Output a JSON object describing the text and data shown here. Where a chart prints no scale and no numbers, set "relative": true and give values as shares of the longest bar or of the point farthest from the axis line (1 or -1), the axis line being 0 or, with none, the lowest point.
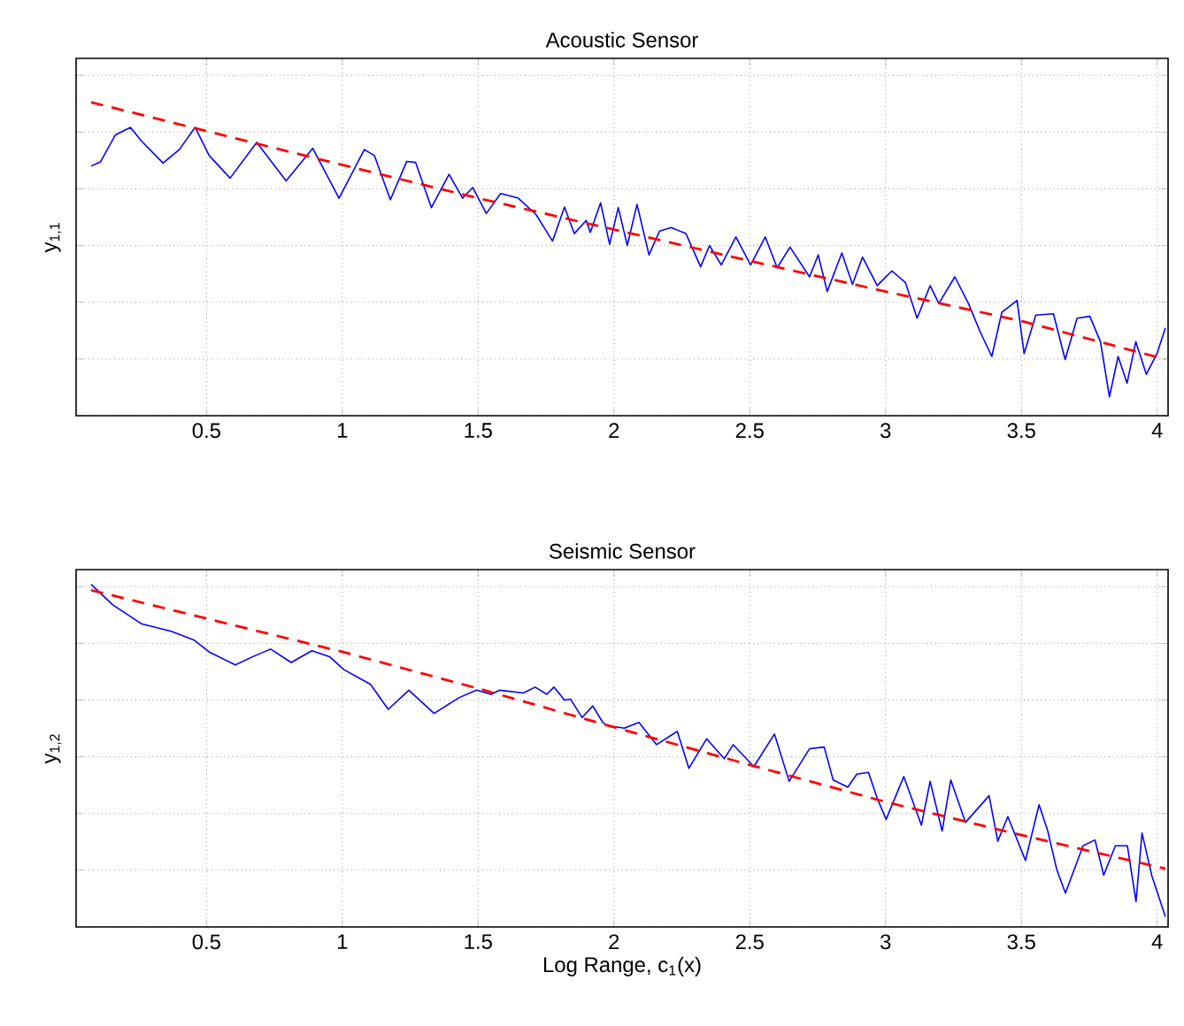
{
  "chart_data": [
    {
      "type": "line",
      "title": "Acoustic Sensor",
      "ylabel": "y$_{1,1}$",
      "relative": true,
      "grid": true,
      "xlim": [
        0.02,
        4.04
      ],
      "xticks": [
        0.5,
        1,
        1.5,
        2,
        2.5,
        3,
        3.5,
        4
      ],
      "series": [
        {
          "color": "#0000ff",
          "line_style": "solid",
          "x": [
            0.075,
            0.11,
            0.165,
            0.22,
            0.26,
            0.34,
            0.4,
            0.458,
            0.51,
            0.587,
            0.685,
            0.793,
            0.891,
            0.988,
            1.081,
            1.118,
            1.177,
            1.237,
            1.27,
            1.328,
            1.393,
            1.443,
            1.48,
            1.53,
            1.583,
            1.648,
            1.713,
            1.774,
            1.818,
            1.854,
            1.898,
            1.913,
            1.951,
            1.984,
            2.016,
            2.049,
            2.085,
            2.129,
            2.168,
            2.211,
            2.265,
            2.319,
            2.352,
            2.395,
            2.449,
            2.503,
            2.557,
            2.601,
            2.648,
            2.72,
            2.752,
            2.785,
            2.839,
            2.878,
            2.915,
            2.969,
            3.023,
            3.073,
            3.116,
            3.164,
            3.196,
            3.255,
            3.305,
            3.348,
            3.391,
            3.428,
            3.484,
            3.51,
            3.553,
            3.618,
            3.661,
            3.705,
            3.752,
            3.791,
            3.824,
            3.856,
            3.889,
            3.921,
            3.96,
            4.0,
            4.03
          ],
          "values": [
            0.796,
            0.81,
            0.896,
            0.92,
            0.877,
            0.806,
            0.849,
            0.92,
            0.83,
            0.758,
            0.872,
            0.749,
            0.853,
            0.694,
            0.849,
            0.83,
            0.689,
            0.811,
            0.808,
            0.664,
            0.77,
            0.694,
            0.728,
            0.645,
            0.709,
            0.694,
            0.642,
            0.557,
            0.666,
            0.581,
            0.623,
            0.585,
            0.679,
            0.547,
            0.664,
            0.543,
            0.674,
            0.513,
            0.589,
            0.6,
            0.581,
            0.475,
            0.543,
            0.481,
            0.57,
            0.481,
            0.57,
            0.472,
            0.538,
            0.443,
            0.513,
            0.396,
            0.519,
            0.419,
            0.506,
            0.415,
            0.462,
            0.425,
            0.311,
            0.415,
            0.358,
            0.443,
            0.358,
            0.268,
            0.189,
            0.33,
            0.368,
            0.198,
            0.321,
            0.325,
            0.179,
            0.311,
            0.317,
            0.236,
            0.06,
            0.189,
            0.104,
            0.236,
            0.132,
            0.2,
            0.28
          ]
        },
        {
          "color": "#ff0000",
          "line_style": "dashed",
          "x": [
            0.075,
            1,
            1.5,
            2,
            2.5,
            3,
            3.5,
            4.03
          ],
          "values": [
            1.0,
            0.8,
            0.694,
            0.594,
            0.494,
            0.396,
            0.302,
            0.18
          ]
        }
      ]
    },
    {
      "type": "line",
      "title": "Seismic Sensor",
      "xlabel": "Log Range, c$_{1}$(x)",
      "ylabel": "y$_{1,2}$",
      "relative": true,
      "grid": true,
      "xlim": [
        0.02,
        4.04
      ],
      "xticks": [
        0.5,
        1,
        1.5,
        2,
        2.5,
        3,
        3.5,
        4
      ],
      "series": [
        {
          "color": "#0000ff",
          "line_style": "solid",
          "x": [
            0.075,
            0.155,
            0.26,
            0.37,
            0.455,
            0.509,
            0.606,
            0.671,
            0.736,
            0.812,
            0.888,
            0.953,
            1.006,
            1.104,
            1.169,
            1.245,
            1.338,
            1.429,
            1.494,
            1.548,
            1.58,
            1.667,
            1.71,
            1.753,
            1.779,
            1.818,
            1.84,
            1.883,
            1.922,
            1.959,
            1.973,
            2.038,
            2.092,
            2.157,
            2.233,
            2.276,
            2.341,
            2.406,
            2.439,
            2.515,
            2.591,
            2.645,
            2.72,
            2.774,
            2.807,
            2.861,
            2.894,
            2.937,
            2.97,
            3.002,
            3.067,
            3.132,
            3.164,
            3.208,
            3.24,
            3.294,
            3.381,
            3.413,
            3.45,
            3.515,
            3.565,
            3.597,
            3.63,
            3.662,
            3.727,
            3.771,
            3.803,
            3.846,
            3.89,
            3.922,
            3.944,
            3.98,
            4.03
          ],
          "values": [
            1.0,
            0.94,
            0.885,
            0.863,
            0.837,
            0.803,
            0.765,
            0.789,
            0.811,
            0.772,
            0.806,
            0.789,
            0.751,
            0.708,
            0.635,
            0.691,
            0.623,
            0.669,
            0.691,
            0.679,
            0.691,
            0.683,
            0.7,
            0.679,
            0.7,
            0.662,
            0.665,
            0.611,
            0.645,
            0.597,
            0.588,
            0.58,
            0.597,
            0.532,
            0.571,
            0.463,
            0.549,
            0.491,
            0.532,
            0.468,
            0.563,
            0.425,
            0.52,
            0.525,
            0.429,
            0.408,
            0.446,
            0.451,
            0.374,
            0.314,
            0.439,
            0.297,
            0.425,
            0.28,
            0.429,
            0.305,
            0.383,
            0.25,
            0.322,
            0.194,
            0.357,
            0.28,
            0.168,
            0.099,
            0.237,
            0.254,
            0.151,
            0.237,
            0.237,
            0.074,
            0.274,
            0.15,
            0.03
          ]
        },
        {
          "color": "#ff0000",
          "line_style": "dashed",
          "x": [
            0.075,
            1,
            1.5,
            2,
            2.5,
            3,
            3.5,
            4.03
          ],
          "values": [
            0.983,
            0.803,
            0.696,
            0.583,
            0.473,
            0.365,
            0.268,
            0.17
          ]
        }
      ]
    }
  ]
}
